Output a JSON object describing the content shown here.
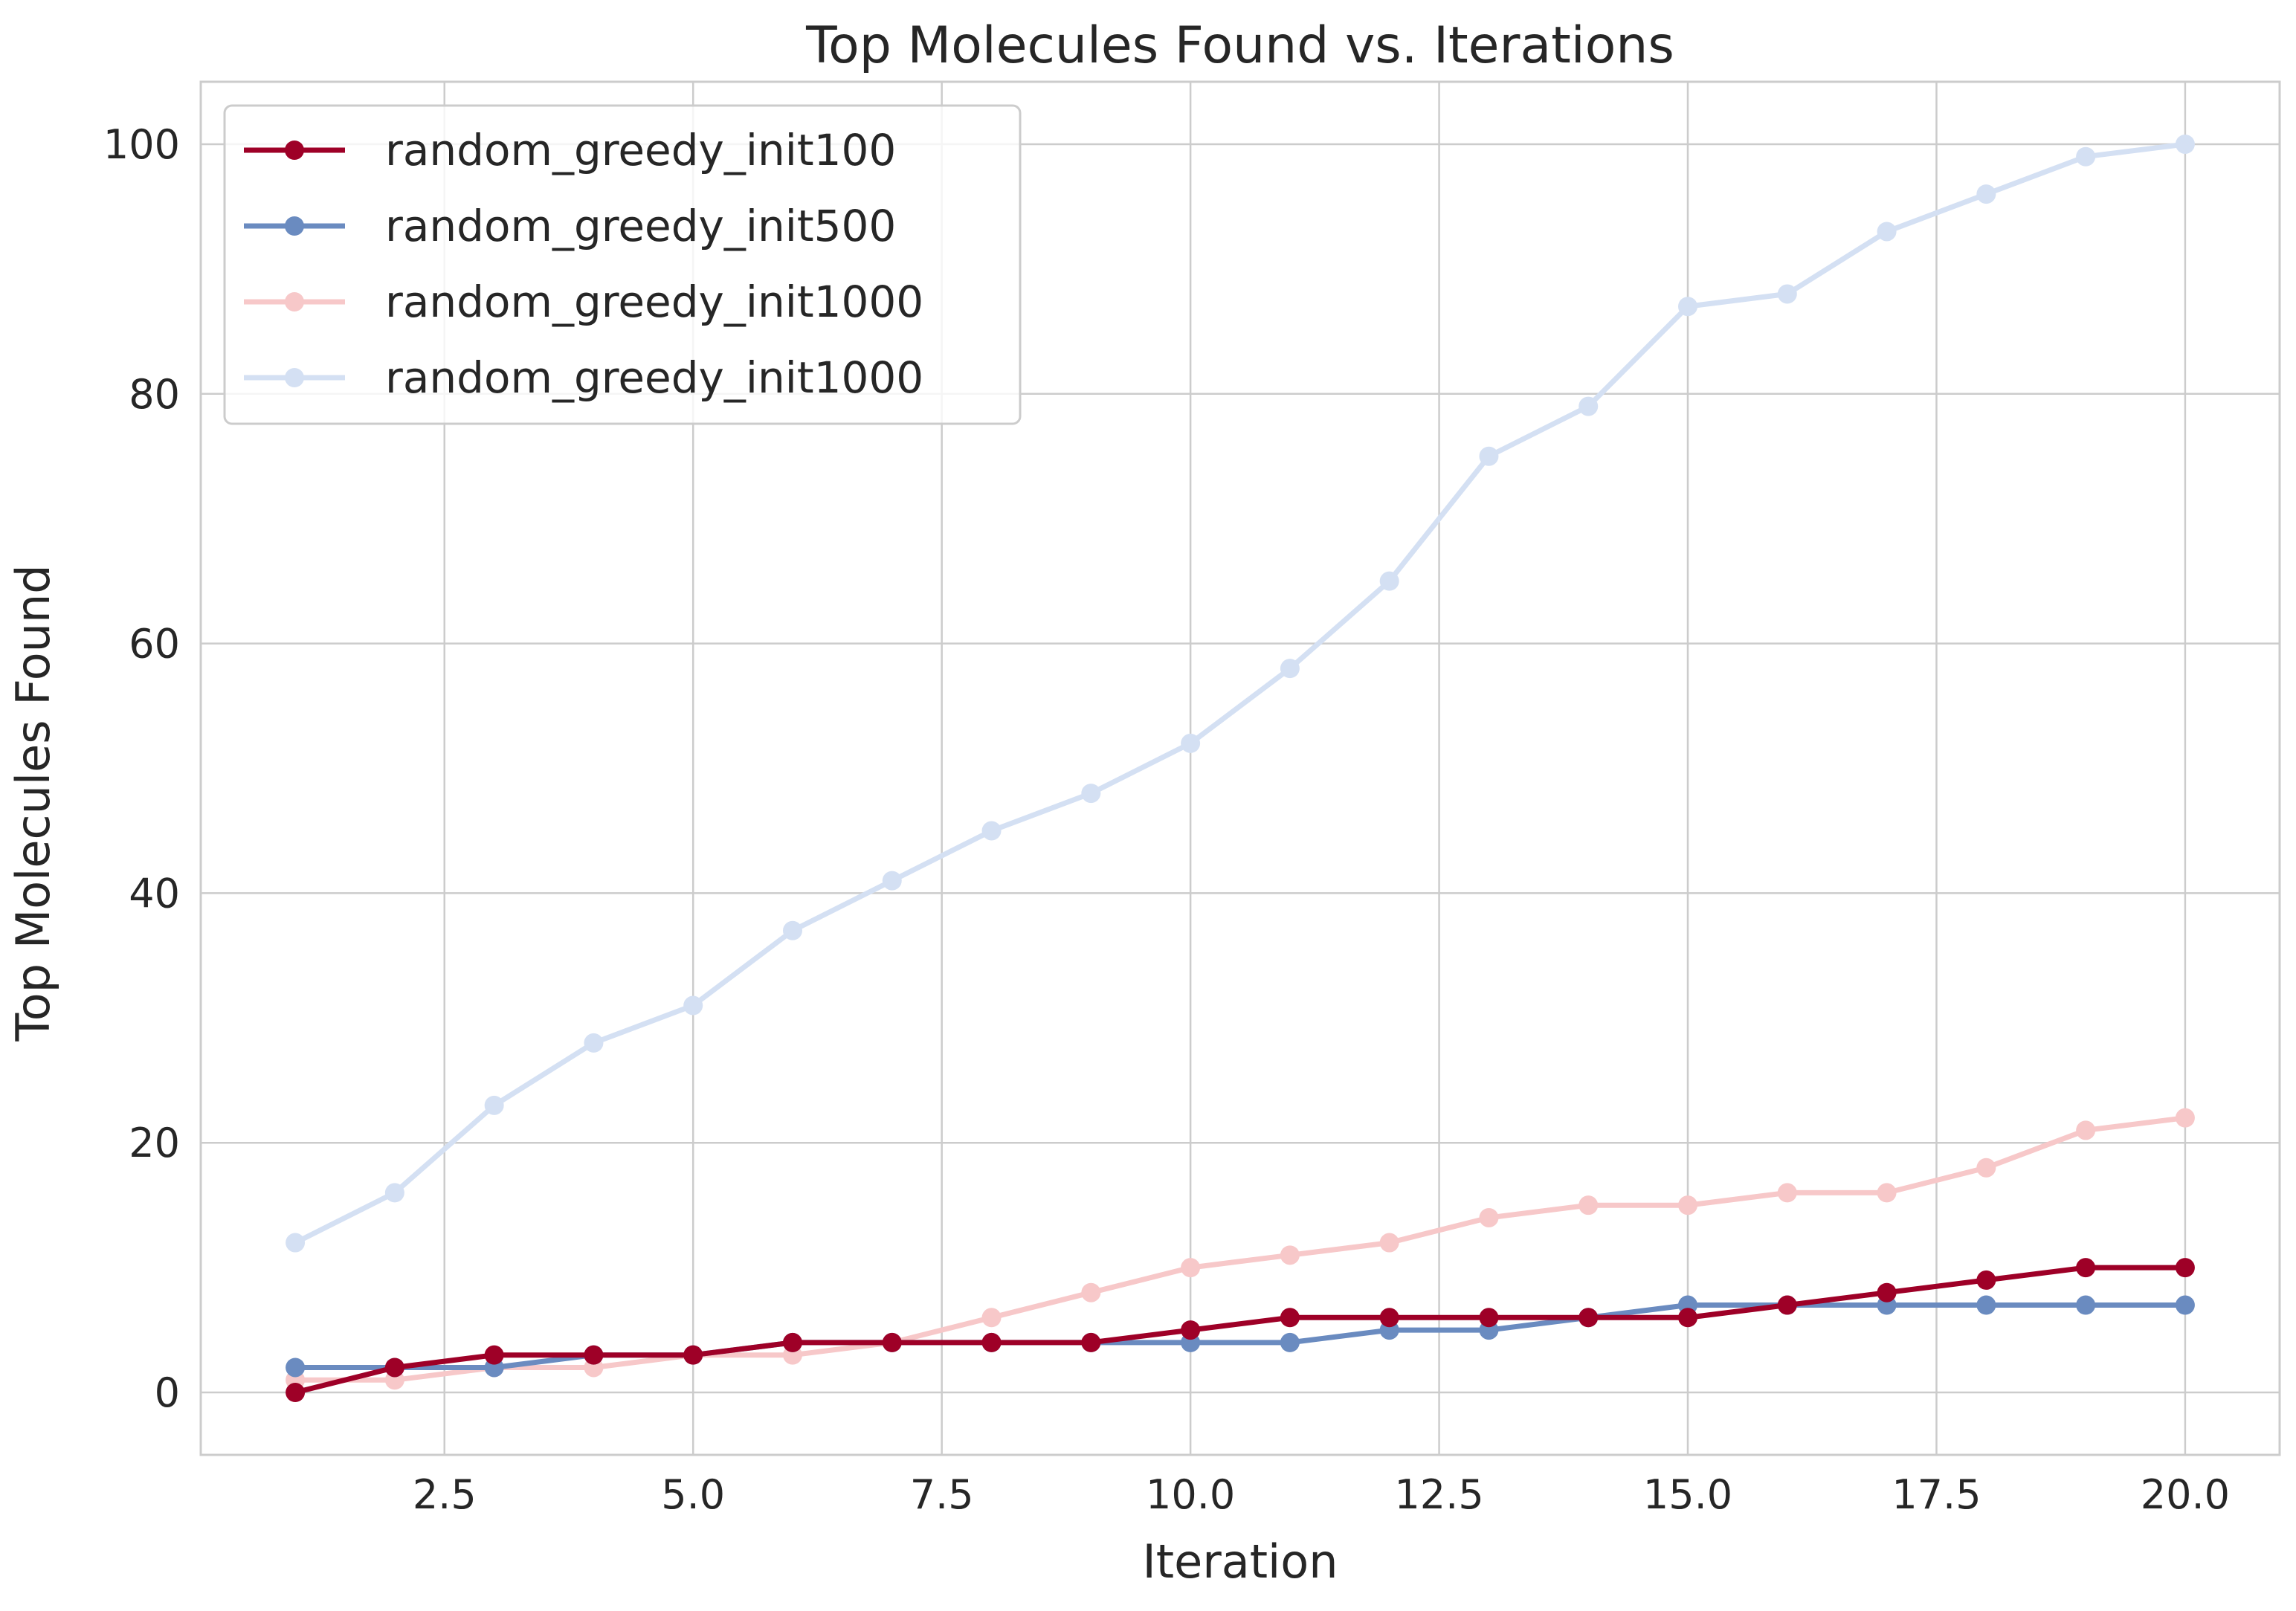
{
  "chart_data": {
    "type": "line",
    "title": "Top Molecules Found vs. Iterations",
    "xlabel": "Iteration",
    "ylabel": "Top Molecules Found",
    "xlim": [
      0.05,
      20.95
    ],
    "ylim": [
      -5,
      105
    ],
    "xticks": [
      2.5,
      5.0,
      7.5,
      10.0,
      12.5,
      15.0,
      17.5,
      20.0
    ],
    "xtick_labels": [
      "2.5",
      "5.0",
      "7.5",
      "10.0",
      "12.5",
      "15.0",
      "17.5",
      "20.0"
    ],
    "yticks": [
      0,
      20,
      40,
      60,
      80,
      100
    ],
    "ytick_labels": [
      "0",
      "20",
      "40",
      "60",
      "80",
      "100"
    ],
    "grid": true,
    "legend_position": "top-left",
    "x": [
      1,
      2,
      3,
      4,
      5,
      6,
      7,
      8,
      9,
      10,
      11,
      12,
      13,
      14,
      15,
      16,
      17,
      18,
      19,
      20
    ],
    "series": [
      {
        "name": "random_greedy_init100",
        "color": "#9e0027",
        "values": [
          0,
          2,
          3,
          3,
          3,
          4,
          4,
          4,
          4,
          5,
          6,
          6,
          6,
          6,
          6,
          7,
          8,
          9,
          10,
          10
        ]
      },
      {
        "name": "random_greedy_init500",
        "color": "#6a8bc0",
        "values": [
          2,
          2,
          2,
          3,
          3,
          4,
          4,
          4,
          4,
          4,
          4,
          5,
          5,
          6,
          7,
          7,
          7,
          7,
          7,
          7
        ]
      },
      {
        "name": "random_greedy_init1000",
        "color": "#f7c8c9",
        "values": [
          1,
          1,
          2,
          2,
          3,
          3,
          4,
          6,
          8,
          10,
          11,
          12,
          14,
          15,
          15,
          16,
          16,
          18,
          21,
          22
        ]
      },
      {
        "name": "random_greedy_init1000",
        "color": "#d4e0f3",
        "values": [
          12,
          16,
          23,
          28,
          31,
          37,
          41,
          45,
          48,
          52,
          58,
          65,
          75,
          79,
          87,
          88,
          93,
          96,
          99,
          100
        ]
      }
    ]
  }
}
